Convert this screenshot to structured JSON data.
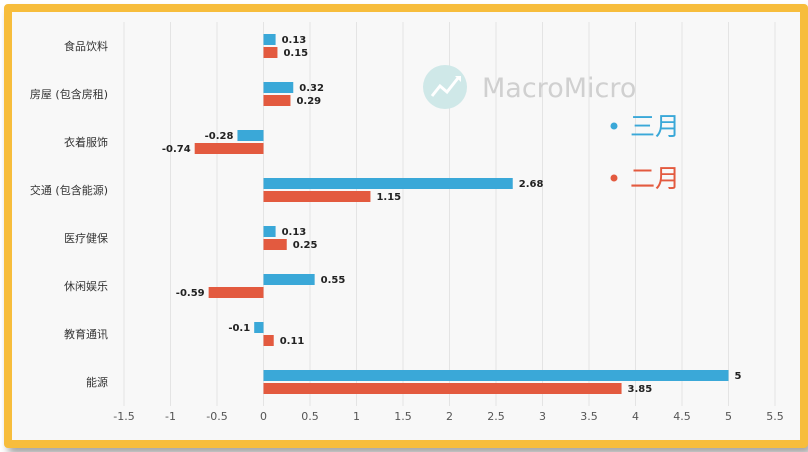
{
  "watermark": {
    "brand": "MacroMicro",
    "icon": "macromicro-logo-icon"
  },
  "colors": {
    "border": "#f7bd3c",
    "series_march": "#3aa8d8",
    "series_feb": "#e35a3f",
    "watermark": "#cfe8e8"
  },
  "chart_data": {
    "type": "bar",
    "orientation": "horizontal",
    "categories": [
      "食品饮料",
      "房屋 (包含房租)",
      "衣着服饰",
      "交通 (包含能源)",
      "医疗健保",
      "休闲娱乐",
      "教育通讯",
      "能源"
    ],
    "series": [
      {
        "name": "三月",
        "color": "#3aa8d8",
        "values": [
          0.13,
          0.32,
          -0.28,
          2.68,
          0.13,
          0.55,
          -0.1,
          5
        ]
      },
      {
        "name": "二月",
        "color": "#e35a3f",
        "values": [
          0.15,
          0.29,
          -0.74,
          1.15,
          0.25,
          -0.59,
          0.11,
          3.85
        ]
      }
    ],
    "value_labels": [
      [
        "0.13",
        "0.32",
        "-0.28",
        "2.68",
        "0.13",
        "0.55",
        "-0.1",
        "5"
      ],
      [
        "0.15",
        "0.29",
        "-0.74",
        "1.15",
        "0.25",
        "-0.59",
        "0.11",
        "3.85"
      ]
    ],
    "xlim": [
      -1.5,
      5.5
    ],
    "xticks": [
      -1.5,
      -1,
      -0.5,
      0,
      0.5,
      1,
      1.5,
      2,
      2.5,
      3,
      3.5,
      4,
      4.5,
      5,
      5.5
    ],
    "xtick_labels": [
      "-1.5",
      "-1",
      "-0.5",
      "0",
      "0.5",
      "1",
      "1.5",
      "2",
      "2.5",
      "3",
      "3.5",
      "4",
      "4.5",
      "5",
      "5.5"
    ],
    "grid": "vertical",
    "legend_position": "right",
    "title": "",
    "xlabel": "",
    "ylabel": ""
  }
}
